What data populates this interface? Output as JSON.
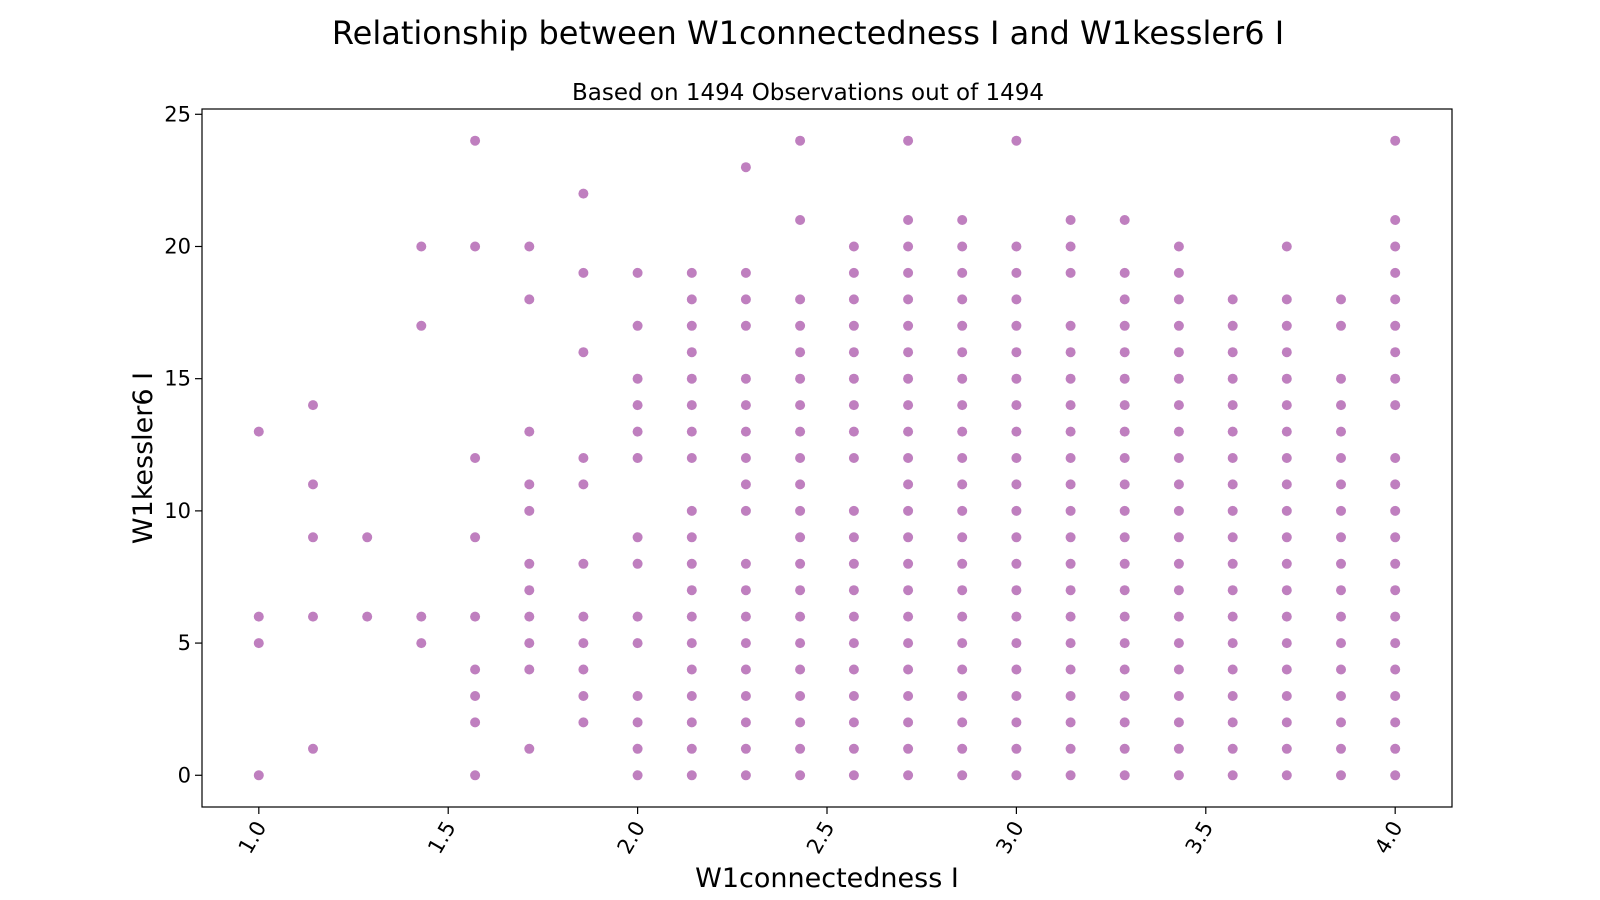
{
  "chart_data": {
    "type": "scatter",
    "title": "Relationship between W1connectedness I and W1kessler6 I",
    "subtitle": "Based on 1494 Observations out of 1494",
    "xlabel": "W1connectedness I",
    "ylabel": "W1kessler6 I",
    "xlim": [
      0.85,
      4.15
    ],
    "ylim": [
      -1.2,
      25.2
    ],
    "xticks": [
      "1.0",
      "1.5",
      "2.0",
      "2.5",
      "3.0",
      "3.5",
      "4.0"
    ],
    "xtick_values": [
      1.0,
      1.5,
      2.0,
      2.5,
      3.0,
      3.5,
      4.0
    ],
    "yticks": [
      "0",
      "5",
      "10",
      "15",
      "20",
      "25"
    ],
    "ytick_values": [
      0,
      5,
      10,
      15,
      20,
      25
    ],
    "grid": false,
    "marker_color": "#800080",
    "marker_alpha": 0.5,
    "columns": [
      {
        "x": 1.0,
        "y": [
          0,
          5,
          6,
          13
        ]
      },
      {
        "x": 1.143,
        "y": [
          1,
          6,
          9,
          11,
          14
        ]
      },
      {
        "x": 1.286,
        "y": [
          6,
          9
        ]
      },
      {
        "x": 1.429,
        "y": [
          5,
          6,
          17,
          20
        ]
      },
      {
        "x": 1.571,
        "y": [
          0,
          2,
          3,
          4,
          6,
          9,
          12,
          20,
          24
        ]
      },
      {
        "x": 1.714,
        "y": [
          1,
          4,
          5,
          6,
          7,
          8,
          10,
          11,
          13,
          18,
          20
        ]
      },
      {
        "x": 1.857,
        "y": [
          2,
          3,
          4,
          5,
          6,
          8,
          11,
          12,
          16,
          19,
          22
        ]
      },
      {
        "x": 2.0,
        "y": [
          0,
          1,
          2,
          3,
          5,
          6,
          8,
          9,
          12,
          13,
          14,
          15,
          17,
          19
        ]
      },
      {
        "x": 2.143,
        "y": [
          0,
          1,
          2,
          3,
          4,
          5,
          6,
          7,
          8,
          9,
          10,
          12,
          13,
          14,
          15,
          16,
          17,
          18,
          19
        ]
      },
      {
        "x": 2.286,
        "y": [
          0,
          1,
          2,
          3,
          4,
          5,
          6,
          7,
          8,
          10,
          11,
          12,
          13,
          14,
          15,
          17,
          18,
          19,
          23
        ]
      },
      {
        "x": 2.429,
        "y": [
          0,
          1,
          2,
          3,
          4,
          5,
          6,
          7,
          8,
          9,
          10,
          11,
          12,
          13,
          14,
          15,
          16,
          17,
          18,
          21,
          24
        ]
      },
      {
        "x": 2.571,
        "y": [
          0,
          1,
          2,
          3,
          4,
          5,
          6,
          7,
          8,
          9,
          10,
          12,
          13,
          14,
          15,
          16,
          17,
          18,
          19,
          20
        ]
      },
      {
        "x": 2.714,
        "y": [
          0,
          1,
          2,
          3,
          4,
          5,
          6,
          7,
          8,
          9,
          10,
          11,
          12,
          13,
          14,
          15,
          16,
          17,
          18,
          19,
          20,
          21,
          24
        ]
      },
      {
        "x": 2.857,
        "y": [
          0,
          1,
          2,
          3,
          4,
          5,
          6,
          7,
          8,
          9,
          10,
          11,
          12,
          13,
          14,
          15,
          16,
          17,
          18,
          19,
          20,
          21
        ]
      },
      {
        "x": 3.0,
        "y": [
          0,
          1,
          2,
          3,
          4,
          5,
          6,
          7,
          8,
          9,
          10,
          11,
          12,
          13,
          14,
          15,
          16,
          17,
          18,
          19,
          20,
          24
        ]
      },
      {
        "x": 3.143,
        "y": [
          0,
          1,
          2,
          3,
          4,
          5,
          6,
          7,
          8,
          9,
          10,
          11,
          12,
          13,
          14,
          15,
          16,
          17,
          19,
          20,
          21
        ]
      },
      {
        "x": 3.286,
        "y": [
          0,
          1,
          2,
          3,
          4,
          5,
          6,
          7,
          8,
          9,
          10,
          11,
          12,
          13,
          14,
          15,
          16,
          17,
          18,
          19,
          21
        ]
      },
      {
        "x": 3.429,
        "y": [
          0,
          1,
          2,
          3,
          4,
          5,
          6,
          7,
          8,
          9,
          10,
          11,
          12,
          13,
          14,
          15,
          16,
          17,
          18,
          19,
          20
        ]
      },
      {
        "x": 3.571,
        "y": [
          0,
          1,
          2,
          3,
          4,
          5,
          6,
          7,
          8,
          9,
          10,
          11,
          12,
          13,
          14,
          15,
          16,
          17,
          18
        ]
      },
      {
        "x": 3.714,
        "y": [
          0,
          1,
          2,
          3,
          4,
          5,
          6,
          7,
          8,
          9,
          10,
          11,
          12,
          13,
          14,
          15,
          16,
          17,
          18,
          20
        ]
      },
      {
        "x": 3.857,
        "y": [
          0,
          1,
          2,
          3,
          4,
          5,
          6,
          7,
          8,
          9,
          10,
          11,
          12,
          13,
          14,
          15,
          17,
          18
        ]
      },
      {
        "x": 4.0,
        "y": [
          0,
          1,
          2,
          3,
          4,
          5,
          6,
          7,
          8,
          9,
          10,
          11,
          12,
          14,
          15,
          16,
          17,
          18,
          19,
          20,
          21,
          24
        ]
      }
    ]
  }
}
